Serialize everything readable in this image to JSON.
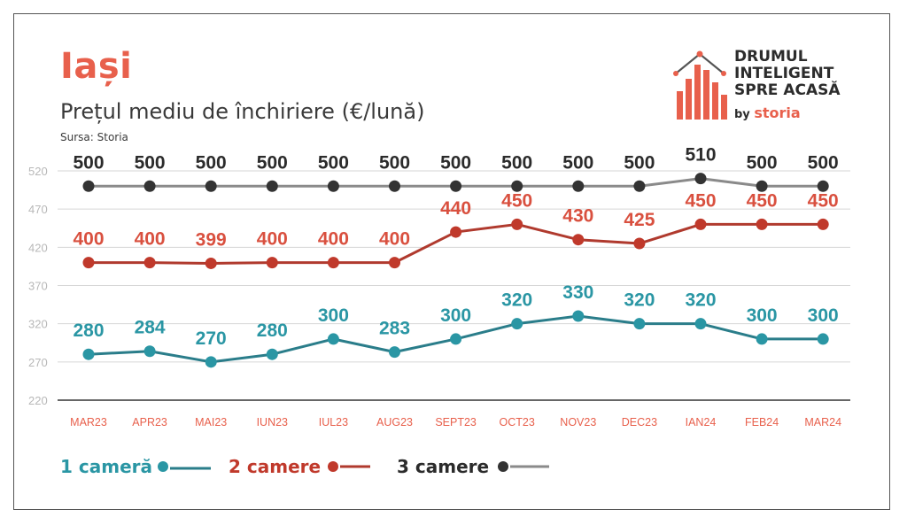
{
  "header": {
    "city": "Iași",
    "subtitle": "Prețul mediu de închiriere (€/lună)",
    "source": "Sursa: Storia"
  },
  "brand": {
    "line1": "DRUMUL",
    "line2": "INTELIGENT",
    "line3": "SPRE ACASĂ",
    "by": "by",
    "storia": "storia"
  },
  "legend": [
    {
      "label": "1 cameră",
      "color": "#2a96a4"
    },
    {
      "label": "2 camere",
      "color": "#c0392b"
    },
    {
      "label": "3 camere",
      "color": "#333333"
    }
  ],
  "chart_data": {
    "type": "line",
    "title": "Prețul mediu de închiriere (€/lună)",
    "xlabel": "",
    "ylabel": "",
    "categories": [
      "MAR23",
      "APR23",
      "MAI23",
      "IUN23",
      "IUL23",
      "AUG23",
      "SEPT23",
      "OCT23",
      "NOV23",
      "DEC23",
      "IAN24",
      "FEB24",
      "MAR24"
    ],
    "yticks": [
      220,
      270,
      320,
      370,
      420,
      470,
      520
    ],
    "ylim": [
      220,
      520
    ],
    "grid": true,
    "legend_position": "bottom-left",
    "series": [
      {
        "name": "1 cameră",
        "color": "#2a96a4",
        "label_color": "#2a96a4",
        "line_color": "#2a7d8a",
        "values": [
          280,
          284,
          270,
          280,
          300,
          283,
          300,
          320,
          330,
          320,
          320,
          300,
          300
        ]
      },
      {
        "name": "2 camere",
        "color": "#c0392b",
        "label_color": "#d9503f",
        "line_color": "#b03a2e",
        "values": [
          400,
          400,
          399,
          400,
          400,
          400,
          440,
          450,
          430,
          425,
          450,
          450,
          450
        ]
      },
      {
        "name": "3 camere",
        "color": "#333333",
        "label_color": "#2b2b2b",
        "line_color": "#8a8a8a",
        "values": [
          500,
          500,
          500,
          500,
          500,
          500,
          500,
          500,
          500,
          500,
          510,
          500,
          500
        ]
      }
    ]
  }
}
